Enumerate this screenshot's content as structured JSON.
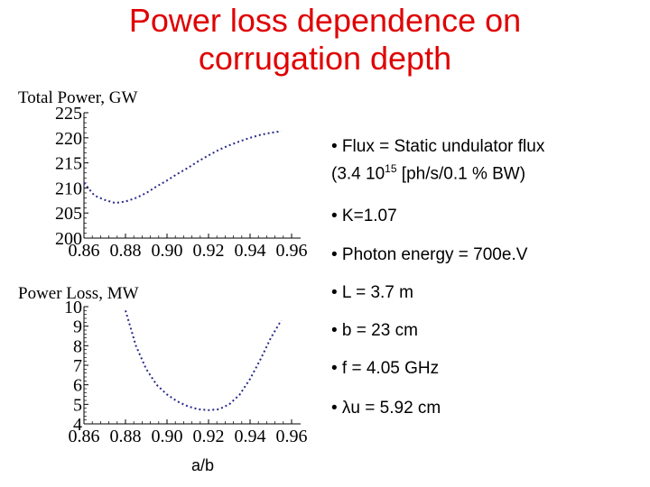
{
  "title": {
    "line1": "Power loss dependence on",
    "line2": "corrugation depth"
  },
  "bullets": {
    "flux_line1": "• Flux = Static undulator flux",
    "flux_line2_prefix": "(3.4 10",
    "flux_sup": "15",
    "flux_line2_suffix": " [ph/s/0.1 % BW)",
    "k": "• K=1.07",
    "photon": "• Photon energy = 700e.V",
    "l": "• L = 3.7 m",
    "b": "• b = 23 cm",
    "f": "• f = 4.05 GHz",
    "lambda": "• λu = 5.92 cm"
  },
  "x_caption": "a/b",
  "chart_data": [
    {
      "type": "line",
      "ylabel": "Total Power, GW",
      "xlim": [
        0.86,
        0.96
      ],
      "ylim": [
        200,
        225
      ],
      "x_ticks": [
        "0.86",
        "0.88",
        "0.90",
        "0.92",
        "0.94",
        "0.96"
      ],
      "y_ticks": [
        "200",
        "205",
        "210",
        "215",
        "220",
        "225"
      ],
      "line_style": "dotted",
      "color": "#2a2a8a",
      "x": [
        0.86,
        0.865,
        0.87,
        0.875,
        0.88,
        0.885,
        0.89,
        0.895,
        0.9,
        0.905,
        0.91,
        0.915,
        0.92,
        0.925,
        0.93,
        0.935,
        0.94,
        0.945,
        0.95,
        0.955
      ],
      "y": [
        211.0,
        208.5,
        207.6,
        207.0,
        207.3,
        208.0,
        209.0,
        210.3,
        211.5,
        212.8,
        214.0,
        215.3,
        216.5,
        217.6,
        218.5,
        219.3,
        220.0,
        220.6,
        221.0,
        221.3
      ]
    },
    {
      "type": "line",
      "ylabel": "Power Loss, MW",
      "xlim": [
        0.86,
        0.96
      ],
      "ylim": [
        4,
        10
      ],
      "x_ticks": [
        "0.86",
        "0.88",
        "0.90",
        "0.92",
        "0.94",
        "0.96"
      ],
      "y_ticks": [
        "4",
        "5",
        "6",
        "7",
        "8",
        "9",
        "10"
      ],
      "line_style": "dotted",
      "color": "#2a2a8a",
      "x": [
        0.88,
        0.885,
        0.89,
        0.895,
        0.9,
        0.905,
        0.91,
        0.915,
        0.92,
        0.925,
        0.93,
        0.935,
        0.94,
        0.945,
        0.95,
        0.955
      ],
      "y": [
        9.8,
        8.0,
        6.8,
        6.0,
        5.5,
        5.15,
        4.9,
        4.75,
        4.7,
        4.75,
        5.0,
        5.5,
        6.3,
        7.3,
        8.4,
        9.3
      ]
    }
  ]
}
